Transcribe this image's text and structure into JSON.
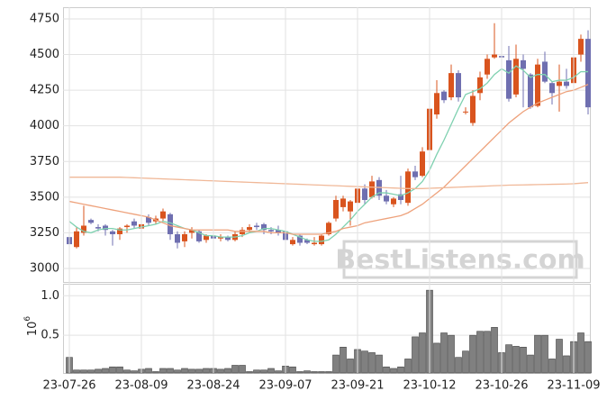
{
  "chart_data": [
    {
      "type": "candlestick",
      "watermark": "BestListens.com",
      "up_color": "#d9541e",
      "down_color": "#6f6fb0",
      "open": [
        3220,
        3150,
        3250,
        3340,
        3290,
        3300,
        3260,
        3240,
        3290,
        3330,
        3280,
        3360,
        3330,
        3350,
        3380,
        3240,
        3190,
        3250,
        3260,
        3200,
        3230,
        3210,
        3220,
        3200,
        3240,
        3270,
        3300,
        3310,
        3270,
        3270,
        3260,
        3170,
        3230,
        3200,
        3170,
        3170,
        3240,
        3350,
        3430,
        3400,
        3460,
        3560,
        3500,
        3620,
        3510,
        3450,
        3520,
        3460,
        3680,
        3650,
        3830,
        4080,
        4240,
        4200,
        4370,
        4100,
        4020,
        4230,
        4360,
        4480,
        4490,
        4460,
        4220,
        4460,
        4360,
        4140,
        4450,
        4300,
        4280,
        4310,
        4300,
        4500,
        4610
      ],
      "high": [
        3250,
        3290,
        3440,
        3350,
        3310,
        3310,
        3270,
        3290,
        3310,
        3350,
        3330,
        3380,
        3370,
        3420,
        3390,
        3260,
        3260,
        3290,
        3270,
        3240,
        3250,
        3240,
        3230,
        3260,
        3290,
        3310,
        3320,
        3320,
        3290,
        3300,
        3280,
        3220,
        3240,
        3210,
        3220,
        3240,
        3330,
        3510,
        3510,
        3480,
        3580,
        3590,
        3650,
        3640,
        3550,
        3500,
        3650,
        3700,
        3720,
        3850,
        4150,
        4320,
        4250,
        4430,
        4390,
        4130,
        4250,
        4380,
        4500,
        4720,
        4500,
        4560,
        4570,
        4500,
        4370,
        4470,
        4520,
        4310,
        4430,
        4400,
        4520,
        4640,
        4670
      ],
      "low": [
        3130,
        3140,
        3230,
        3310,
        3260,
        3230,
        3160,
        3200,
        3250,
        3280,
        3250,
        3300,
        3310,
        3330,
        3200,
        3140,
        3150,
        3210,
        3180,
        3180,
        3190,
        3190,
        3190,
        3190,
        3220,
        3250,
        3270,
        3240,
        3240,
        3230,
        3180,
        3160,
        3160,
        3170,
        3160,
        3160,
        3230,
        3330,
        3400,
        3300,
        3440,
        3450,
        3490,
        3480,
        3450,
        3430,
        3450,
        3440,
        3620,
        3640,
        3820,
        4050,
        4160,
        4180,
        4170,
        4080,
        4000,
        4180,
        4330,
        4470,
        4440,
        4170,
        4200,
        4130,
        4120,
        4130,
        4300,
        4150,
        4100,
        4260,
        4280,
        4450,
        4080
      ],
      "close": [
        3170,
        3260,
        3300,
        3320,
        3280,
        3270,
        3240,
        3280,
        3300,
        3300,
        3310,
        3320,
        3350,
        3400,
        3240,
        3180,
        3240,
        3270,
        3190,
        3230,
        3210,
        3220,
        3200,
        3240,
        3270,
        3290,
        3290,
        3270,
        3260,
        3250,
        3200,
        3200,
        3180,
        3180,
        3180,
        3230,
        3320,
        3480,
        3490,
        3470,
        3560,
        3480,
        3610,
        3510,
        3470,
        3490,
        3480,
        3680,
        3640,
        3820,
        4120,
        4230,
        4180,
        4370,
        4200,
        4100,
        4210,
        4340,
        4470,
        4500,
        4480,
        4190,
        4470,
        4400,
        4130,
        4430,
        4310,
        4230,
        4310,
        4280,
        4480,
        4610,
        4130
      ],
      "lines": [
        {
          "color": "#7fd1b0",
          "values": [
            3330,
            3290,
            3260,
            3250,
            3270,
            3280,
            3280,
            3270,
            3270,
            3280,
            3290,
            3300,
            3310,
            3330,
            3320,
            3300,
            3280,
            3270,
            3250,
            3230,
            3230,
            3220,
            3220,
            3220,
            3230,
            3250,
            3260,
            3280,
            3280,
            3270,
            3260,
            3240,
            3220,
            3200,
            3190,
            3190,
            3200,
            3240,
            3290,
            3340,
            3400,
            3450,
            3500,
            3530,
            3530,
            3520,
            3510,
            3530,
            3560,
            3610,
            3690,
            3800,
            3900,
            4010,
            4120,
            4220,
            4240,
            4260,
            4300,
            4360,
            4400,
            4370,
            4420,
            4390,
            4340,
            4360,
            4360,
            4310,
            4320,
            4320,
            4340,
            4380,
            4380
          ]
        },
        {
          "color": "#eea27c",
          "values": [
            3470,
            3460,
            3450,
            3440,
            3430,
            3420,
            3410,
            3400,
            3390,
            3380,
            3370,
            3360,
            3340,
            3320,
            3300,
            3290,
            3280,
            3270,
            3270,
            3270,
            3270,
            3270,
            3270,
            3260,
            3260,
            3260,
            3260,
            3260,
            3250,
            3250,
            3250,
            3240,
            3240,
            3240,
            3240,
            3240,
            3250,
            3260,
            3280,
            3290,
            3300,
            3320,
            3330,
            3340,
            3350,
            3360,
            3370,
            3390,
            3420,
            3450,
            3490,
            3530,
            3570,
            3620,
            3670,
            3720,
            3770,
            3820,
            3870,
            3920,
            3970,
            4020,
            4060,
            4100,
            4130,
            4160,
            4180,
            4200,
            4220,
            4240,
            4250,
            4270,
            4290
          ]
        },
        {
          "color": "#f0b898",
          "values": [
            3640,
            3640,
            3640,
            3640,
            3640,
            3640,
            3640,
            3640,
            3638,
            3636,
            3634,
            3632,
            3630,
            3628,
            3626,
            3624,
            3622,
            3620,
            3618,
            3616,
            3614,
            3612,
            3610,
            3608,
            3606,
            3604,
            3602,
            3600,
            3598,
            3596,
            3594,
            3592,
            3590,
            3588,
            3586,
            3584,
            3582,
            3580,
            3578,
            3576,
            3574,
            3572,
            3570,
            3568,
            3566,
            3564,
            3562,
            3560,
            3560,
            3560,
            3562,
            3564,
            3566,
            3568,
            3570,
            3572,
            3574,
            3576,
            3578,
            3580,
            3582,
            3584,
            3585,
            3586,
            3587,
            3588,
            3589,
            3590,
            3591,
            3592,
            3594,
            3598,
            3602
          ]
        }
      ],
      "ylim": [
        2905,
        4832
      ],
      "yticks": [
        3000,
        3250,
        3500,
        3750,
        4000,
        4250,
        4500,
        4750
      ],
      "grid": true
    },
    {
      "type": "bar",
      "color": "#808080",
      "y_multiplier": {
        "base": 10,
        "exponent": 6
      },
      "categories": [
        "23-07-26",
        null,
        null,
        null,
        null,
        null,
        null,
        null,
        null,
        null,
        "23-08-09",
        null,
        null,
        null,
        null,
        null,
        null,
        null,
        null,
        null,
        "23-08-24",
        null,
        null,
        null,
        null,
        null,
        null,
        null,
        null,
        null,
        "23-09-07",
        null,
        null,
        null,
        null,
        null,
        null,
        null,
        null,
        null,
        "23-09-21",
        null,
        null,
        null,
        null,
        null,
        null,
        null,
        null,
        null,
        "23-10-12",
        null,
        null,
        null,
        null,
        null,
        null,
        null,
        null,
        null,
        "23-10-26",
        null,
        null,
        null,
        null,
        null,
        null,
        null,
        null,
        null,
        "23-11-09",
        null,
        null
      ],
      "values": [
        0.22,
        0.06,
        0.06,
        0.06,
        0.07,
        0.08,
        0.1,
        0.1,
        0.06,
        0.05,
        0.07,
        0.08,
        0.04,
        0.08,
        0.08,
        0.06,
        0.08,
        0.07,
        0.07,
        0.08,
        0.08,
        0.07,
        0.08,
        0.12,
        0.12,
        0.04,
        0.06,
        0.06,
        0.08,
        0.05,
        0.11,
        0.1,
        0.04,
        0.05,
        0.04,
        0.04,
        0.04,
        0.25,
        0.35,
        0.2,
        0.32,
        0.3,
        0.28,
        0.25,
        0.1,
        0.08,
        0.1,
        0.2,
        0.48,
        0.53,
        1.07,
        0.4,
        0.53,
        0.5,
        0.22,
        0.3,
        0.5,
        0.55,
        0.55,
        0.6,
        0.28,
        0.38,
        0.36,
        0.35,
        0.25,
        0.5,
        0.5,
        0.2,
        0.45,
        0.24,
        0.42,
        0.53,
        0.42
      ],
      "ylim": [
        0,
        1.14
      ],
      "yticks": [
        0.5,
        {
          "value": 1,
          "label": "1.0"
        }
      ],
      "grid": true
    }
  ]
}
